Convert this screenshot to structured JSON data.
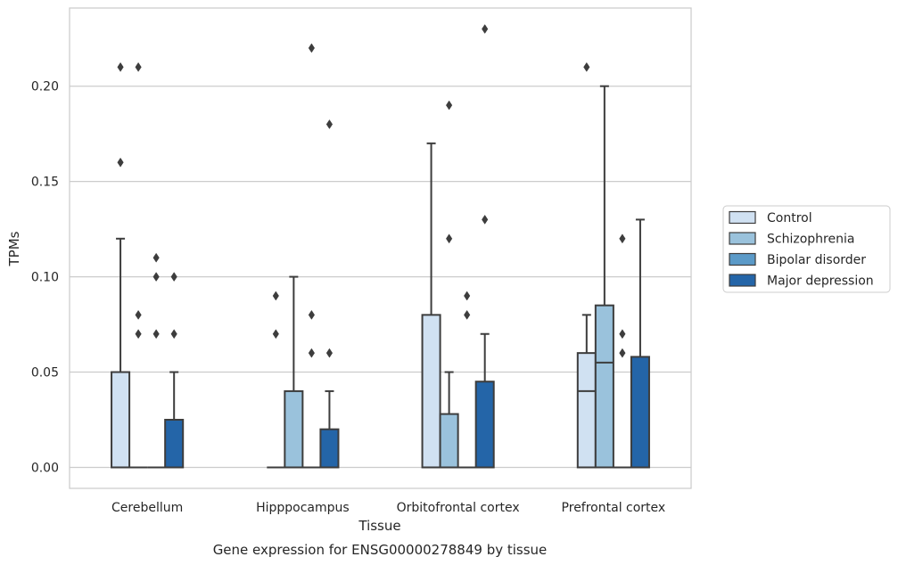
{
  "chart_data": {
    "type": "box",
    "title": "",
    "caption": "Gene expression for ENSG00000278849 by tissue",
    "xlabel": "Tissue",
    "ylabel": "TPMs",
    "ylim": [
      -0.011,
      0.241
    ],
    "yticks": [
      0.0,
      0.05,
      0.1,
      0.15,
      0.2
    ],
    "ytick_labels": [
      "0.00",
      "0.05",
      "0.10",
      "0.15",
      "0.20"
    ],
    "grid": true,
    "legend_position": "right",
    "categories": [
      "Cerebellum",
      "Hipppocampus",
      "Orbitofrontal cortex",
      "Prefrontal cortex"
    ],
    "series": [
      {
        "name": "Control",
        "color": "#d0e1f2",
        "boxes": [
          {
            "q1": 0,
            "median": 0,
            "q3": 0.05,
            "whisker_low": 0,
            "whisker_high": 0.12,
            "outliers": [
              0.16,
              0.21
            ]
          },
          {
            "q1": 0,
            "median": 0,
            "q3": 0,
            "whisker_low": 0,
            "whisker_high": 0,
            "outliers": [
              0.07,
              0.09
            ]
          },
          {
            "q1": 0,
            "median": 0,
            "q3": 0.08,
            "whisker_low": 0,
            "whisker_high": 0.17,
            "outliers": []
          },
          {
            "q1": 0,
            "median": 0.04,
            "q3": 0.06,
            "whisker_low": 0,
            "whisker_high": 0.08,
            "outliers": [
              0.21
            ]
          }
        ]
      },
      {
        "name": "Schizophrenia",
        "color": "#9ac2dc",
        "boxes": [
          {
            "q1": 0,
            "median": 0,
            "q3": 0,
            "whisker_low": 0,
            "whisker_high": 0,
            "outliers": [
              0.07,
              0.08,
              0.21
            ]
          },
          {
            "q1": 0,
            "median": 0,
            "q3": 0.04,
            "whisker_low": 0,
            "whisker_high": 0.1,
            "outliers": []
          },
          {
            "q1": 0,
            "median": 0,
            "q3": 0.028,
            "whisker_low": 0,
            "whisker_high": 0.05,
            "outliers": [
              0.12,
              0.19
            ]
          },
          {
            "q1": 0,
            "median": 0.055,
            "q3": 0.085,
            "whisker_low": 0,
            "whisker_high": 0.2,
            "outliers": []
          }
        ]
      },
      {
        "name": "Bipolar disorder",
        "color": "#5b9ac8",
        "boxes": [
          {
            "q1": 0,
            "median": 0,
            "q3": 0,
            "whisker_low": 0,
            "whisker_high": 0,
            "outliers": [
              0.07,
              0.1,
              0.11
            ]
          },
          {
            "q1": 0,
            "median": 0,
            "q3": 0,
            "whisker_low": 0,
            "whisker_high": 0,
            "outliers": [
              0.06,
              0.08,
              0.22
            ]
          },
          {
            "q1": 0,
            "median": 0,
            "q3": 0,
            "whisker_low": 0,
            "whisker_high": 0,
            "outliers": [
              0.08,
              0.09
            ]
          },
          {
            "q1": 0,
            "median": 0,
            "q3": 0,
            "whisker_low": 0,
            "whisker_high": 0,
            "outliers": [
              0.06,
              0.07,
              0.12
            ]
          }
        ]
      },
      {
        "name": "Major depression",
        "color": "#2465a8",
        "boxes": [
          {
            "q1": 0,
            "median": 0,
            "q3": 0.025,
            "whisker_low": 0,
            "whisker_high": 0.05,
            "outliers": [
              0.07,
              0.1
            ]
          },
          {
            "q1": 0,
            "median": 0,
            "q3": 0.02,
            "whisker_low": 0,
            "whisker_high": 0.04,
            "outliers": [
              0.06,
              0.18
            ]
          },
          {
            "q1": 0,
            "median": 0,
            "q3": 0.045,
            "whisker_low": 0,
            "whisker_high": 0.07,
            "outliers": [
              0.13,
              0.23
            ]
          },
          {
            "q1": 0,
            "median": 0,
            "q3": 0.058,
            "whisker_low": 0,
            "whisker_high": 0.13,
            "outliers": []
          }
        ]
      }
    ]
  }
}
